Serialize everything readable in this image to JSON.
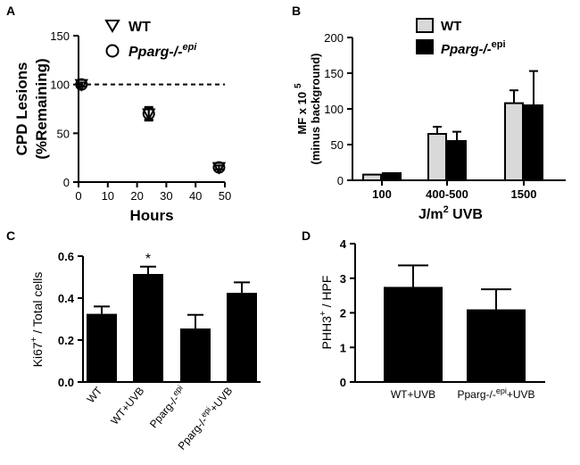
{
  "chart_data": [
    {
      "panel": "A",
      "type": "scatter",
      "xlabel": "Hours",
      "ylabel_lines": [
        "CPD Lesions",
        "(%Remaining)"
      ],
      "xlim": [
        0,
        50
      ],
      "ylim": [
        0,
        150
      ],
      "xticks": [
        0,
        10,
        20,
        30,
        40,
        50
      ],
      "yticks": [
        0,
        50,
        100,
        150
      ],
      "reference_line": {
        "y": 100,
        "style": "dashed"
      },
      "legend": [
        "WT",
        "Pparg-/-epi"
      ],
      "series": [
        {
          "name": "WT",
          "marker": "triangle-down",
          "x": [
            1,
            24,
            48
          ],
          "y": [
            100,
            70,
            15
          ],
          "err": [
            2,
            7,
            2
          ]
        },
        {
          "name": "Pparg-/-epi",
          "marker": "circle",
          "x": [
            1,
            24,
            48
          ],
          "y": [
            100,
            70,
            15
          ],
          "err": [
            2,
            6,
            2
          ]
        }
      ]
    },
    {
      "panel": "B",
      "type": "bar",
      "xlabel": "J/m2 UVB",
      "ylabel_lines": [
        "MF x 10 5",
        "(minus background)"
      ],
      "ylim": [
        0,
        200
      ],
      "yticks": [
        0,
        50,
        100,
        150,
        200
      ],
      "categories": [
        "100",
        "400-500",
        "1500"
      ],
      "legend": [
        "WT",
        "Pparg-/-epi"
      ],
      "series": [
        {
          "name": "WT",
          "color": "#d9d9d9",
          "values": [
            8,
            65,
            108
          ],
          "err": [
            0,
            10,
            18
          ]
        },
        {
          "name": "Pparg-/-epi",
          "color": "#000000",
          "values": [
            10,
            55,
            105
          ],
          "err": [
            0,
            13,
            48
          ]
        }
      ]
    },
    {
      "panel": "C",
      "type": "bar",
      "ylabel": "Ki67+ / Total cells",
      "ylim": [
        0,
        0.6
      ],
      "yticks": [
        "0.0",
        "0.2",
        "0.4",
        "0.6"
      ],
      "categories": [
        "WT",
        "WT+UVB",
        "Pparg-/-epi",
        "Pparg-/- epi +UVB"
      ],
      "values": [
        0.325,
        0.515,
        0.255,
        0.425
      ],
      "err": [
        0.035,
        0.035,
        0.065,
        0.05
      ],
      "annotations": [
        {
          "category": "WT+UVB",
          "text": "*"
        }
      ]
    },
    {
      "panel": "D",
      "type": "bar",
      "ylabel": "PHH3+ / HPF",
      "ylim": [
        0,
        4
      ],
      "yticks": [
        "0",
        "1",
        "2",
        "3",
        "4"
      ],
      "categories": [
        "WT+UVB",
        "Pparg-/-epi+UVB"
      ],
      "values": [
        2.75,
        2.1
      ],
      "err": [
        0.62,
        0.58
      ]
    }
  ],
  "text": {
    "panelA": "A",
    "panelB": "B",
    "panelC": "C",
    "panelD": "D",
    "a_ylabel1": "CPD Lesions",
    "a_ylabel2": "(%Remaining)",
    "a_xlabel": "Hours",
    "a_leg_wt": "WT",
    "a_leg_ko_main": "Pparg-/-",
    "a_leg_ko_sup": "epi",
    "b_ylabel1_main": "MF x 10",
    "b_ylabel1_sup": "5",
    "b_ylabel2": "(minus background)",
    "b_xlabel_main": "J/m",
    "b_xlabel_sup": "2",
    "b_xlabel_rest": " UVB",
    "b_leg_wt": "WT",
    "b_leg_ko_main": "Pparg-/-",
    "b_leg_ko_sup": "epi",
    "c_ylabel_main1": "Ki67",
    "c_ylabel_sup": "+",
    "c_ylabel_main2": " / Total cells",
    "c_cat1": "WT",
    "c_cat2": "WT+UVB",
    "c_cat3_main": "Pparg-/-",
    "c_cat3_sup": "epi",
    "c_cat4_main1": "Pparg-/-",
    "c_cat4_sup": "epi",
    "c_cat4_main2": "+UVB",
    "c_star": "*",
    "d_ylabel_main1": "PHH3",
    "d_ylabel_sup": "+",
    "d_ylabel_main2": " / HPF",
    "d_cat1": "WT+UVB",
    "d_cat2_main1": "Pparg-/-",
    "d_cat2_sup": "epi",
    "d_cat2_main2": "+UVB"
  }
}
